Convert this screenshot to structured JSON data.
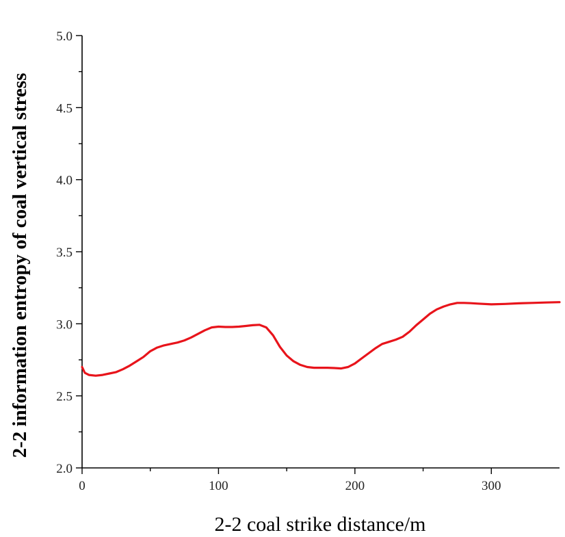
{
  "chart_data": {
    "type": "line",
    "title": "",
    "xlabel": "2-2 coal strike distance/m",
    "ylabel": "2-2 information entropy of coal vertical stress",
    "xlim": [
      0,
      350
    ],
    "ylim": [
      2.0,
      5.0
    ],
    "x_ticks": [
      0,
      100,
      200,
      300
    ],
    "y_ticks": [
      2.0,
      2.5,
      3.0,
      3.5,
      4.0,
      4.5,
      5.0
    ],
    "x_tick_labels": [
      "0",
      "100",
      "200",
      "300"
    ],
    "y_tick_labels": [
      "2.0",
      "2.5",
      "3.0",
      "3.5",
      "4.0",
      "4.5",
      "5.0"
    ],
    "grid": false,
    "legend": "none",
    "series": [
      {
        "color": "#e8141b",
        "x": [
          0,
          2,
          5,
          10,
          15,
          20,
          25,
          30,
          35,
          40,
          45,
          50,
          55,
          60,
          65,
          70,
          75,
          80,
          85,
          90,
          95,
          100,
          105,
          110,
          115,
          120,
          125,
          130,
          135,
          140,
          145,
          150,
          155,
          160,
          165,
          170,
          175,
          180,
          185,
          190,
          195,
          200,
          205,
          210,
          215,
          220,
          225,
          230,
          235,
          240,
          245,
          250,
          255,
          260,
          265,
          270,
          275,
          280,
          285,
          290,
          300,
          310,
          320,
          330,
          340,
          350
        ],
        "y": [
          2.7,
          2.66,
          2.645,
          2.64,
          2.645,
          2.655,
          2.665,
          2.685,
          2.71,
          2.74,
          2.77,
          2.81,
          2.835,
          2.85,
          2.86,
          2.87,
          2.885,
          2.905,
          2.93,
          2.955,
          2.975,
          2.98,
          2.978,
          2.978,
          2.98,
          2.985,
          2.99,
          2.993,
          2.975,
          2.92,
          2.84,
          2.78,
          2.74,
          2.715,
          2.7,
          2.695,
          2.695,
          2.695,
          2.693,
          2.69,
          2.7,
          2.725,
          2.76,
          2.795,
          2.83,
          2.86,
          2.875,
          2.89,
          2.91,
          2.945,
          2.99,
          3.03,
          3.07,
          3.1,
          3.12,
          3.135,
          3.145,
          3.145,
          3.143,
          3.14,
          3.135,
          3.138,
          3.142,
          3.145,
          3.148,
          3.15
        ]
      }
    ]
  }
}
